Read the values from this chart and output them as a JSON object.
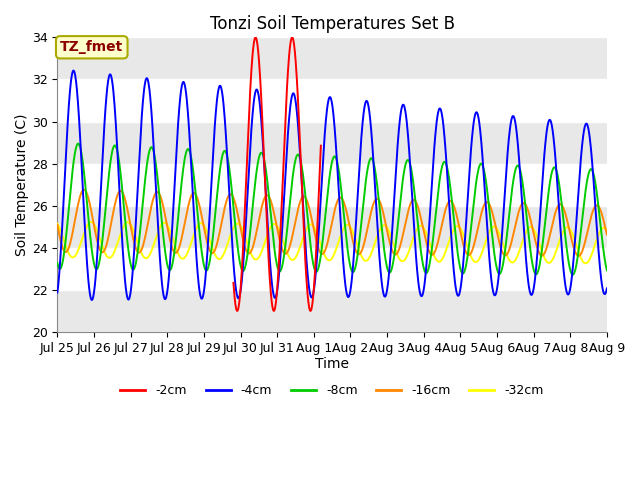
{
  "title": "Tonzi Soil Temperatures Set B",
  "xlabel": "Time",
  "ylabel": "Soil Temperature (C)",
  "ylim": [
    20,
    34
  ],
  "xlim": [
    0,
    15
  ],
  "annotation_text": "TZ_fmet",
  "annotation_color": "#8B0000",
  "annotation_bg": "#FFFFCC",
  "annotation_border": "#AAAA00",
  "fig_bg": "#FFFFFF",
  "plot_bg": "#FFFFFF",
  "band_color": "#E8E8E8",
  "legend_labels": [
    "-2cm",
    "-4cm",
    "-8cm",
    "-16cm",
    "-32cm"
  ],
  "legend_colors": [
    "#FF0000",
    "#0000FF",
    "#00CC00",
    "#FF8800",
    "#FFFF00"
  ],
  "line_width": 1.4,
  "x_tick_labels": [
    "Jul 25",
    "Jul 26",
    "Jul 27",
    "Jul 28",
    "Jul 29",
    "Jul 30",
    "Jul 31",
    "Aug 1",
    "Aug 2",
    "Aug 3",
    "Aug 4",
    "Aug 5",
    "Aug 6",
    "Aug 7",
    "Aug 8",
    "Aug 9"
  ],
  "yticks": [
    20,
    22,
    24,
    26,
    28,
    30,
    32,
    34
  ]
}
